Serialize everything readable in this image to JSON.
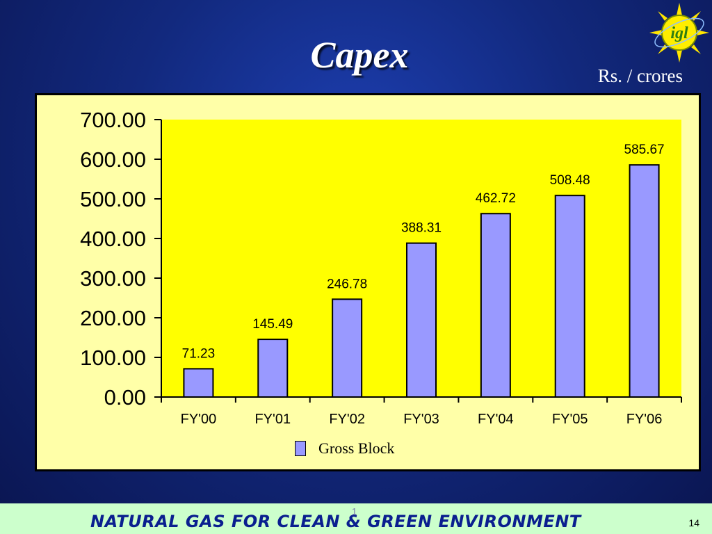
{
  "slide": {
    "title": "Capex",
    "units": "Rs. / crores",
    "logo_text": "igl",
    "legend_label": "Gross Block",
    "footer_text": "NATURAL GAS FOR CLEAN & GREEN ENVIRONMENT",
    "footer_marker": "1",
    "page_number": "14"
  },
  "colors": {
    "background": "#12297e",
    "panel": "#ffffa8",
    "plot_area": "#ffff00",
    "bar": "#9999ff",
    "footer": "#ccffcc",
    "footer_text": "#0a1f8f"
  },
  "chart_data": {
    "type": "bar",
    "categories": [
      "FY'00",
      "FY'01",
      "FY'02",
      "FY'03",
      "FY'04",
      "FY'05",
      "FY'06"
    ],
    "series": [
      {
        "name": "Gross Block",
        "values": [
          71.23,
          145.49,
          246.78,
          388.31,
          462.72,
          508.48,
          585.67
        ],
        "labels": [
          "71.23",
          "145.49",
          "246.78",
          "388.31",
          "462.72",
          "508.48",
          "585.67"
        ]
      }
    ],
    "ylim": [
      0,
      700
    ],
    "yticks": [
      0,
      100,
      200,
      300,
      400,
      500,
      600,
      700
    ],
    "ytick_labels": [
      "0.00",
      "100.00",
      "200.00",
      "300.00",
      "400.00",
      "500.00",
      "600.00",
      "700.00"
    ],
    "xlabel": "",
    "ylabel": "",
    "grid": false,
    "legend_position": "bottom"
  }
}
